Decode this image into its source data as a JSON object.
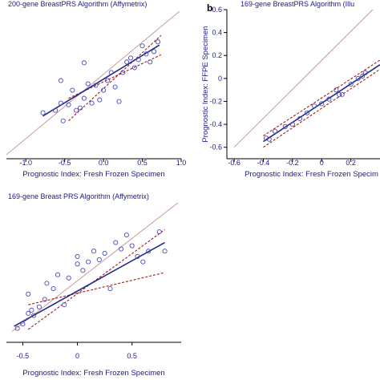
{
  "chart_data": [
    {
      "type": "scatter",
      "title": "200-gene BreastPRS Algorithm (Affymetrix)",
      "panel_label": "",
      "xlabel": "Prognostic Index: Fresh Frozen Specimen",
      "ylabel": "",
      "xlim": [
        -1.25,
        1.0
      ],
      "ylim": [
        -0.95,
        0.9
      ],
      "xticks": [
        "-1.0",
        "-0.5",
        "0.0",
        "0.5",
        "1.0"
      ],
      "grid": false,
      "points": [
        [
          -0.78,
          -0.38
        ],
        [
          -0.62,
          -0.35
        ],
        [
          -0.55,
          -0.26
        ],
        [
          -0.52,
          -0.48
        ],
        [
          -0.45,
          -0.28
        ],
        [
          -0.4,
          -0.1
        ],
        [
          -0.35,
          -0.35
        ],
        [
          -0.3,
          -0.32
        ],
        [
          -0.25,
          -0.2
        ],
        [
          -0.2,
          -0.02
        ],
        [
          -0.15,
          -0.26
        ],
        [
          -0.1,
          -0.04
        ],
        [
          -0.05,
          -0.22
        ],
        [
          0.0,
          -0.1
        ],
        [
          0.05,
          0.02
        ],
        [
          0.1,
          0.12
        ],
        [
          0.15,
          -0.06
        ],
        [
          0.2,
          -0.24
        ],
        [
          0.25,
          0.12
        ],
        [
          0.3,
          0.25
        ],
        [
          0.35,
          0.3
        ],
        [
          0.4,
          0.18
        ],
        [
          0.45,
          0.28
        ],
        [
          0.5,
          0.45
        ],
        [
          0.55,
          0.35
        ],
        [
          0.6,
          0.25
        ],
        [
          0.65,
          0.38
        ],
        [
          0.7,
          0.5
        ],
        [
          -0.55,
          0.02
        ],
        [
          -0.25,
          0.24
        ]
      ],
      "fit_line": [
        [
          -0.78,
          -0.42
        ],
        [
          0.72,
          0.46
        ]
      ],
      "ci_upper": [
        [
          -0.45,
          -0.48
        ],
        [
          0.74,
          0.58
        ]
      ],
      "ci_lower": [
        [
          -0.45,
          -0.2
        ],
        [
          0.74,
          0.34
        ]
      ],
      "identity_line": [
        [
          -1.25,
          -0.9
        ],
        [
          0.98,
          0.88
        ]
      ]
    },
    {
      "type": "scatter",
      "title": "169-gene BreastPRS Algorithm (Illu",
      "panel_label": "b",
      "xlabel": "Prognostic Index: Fresh Frozen Specim",
      "ylabel": "Prognostic Index: FFPE Specimen",
      "xlim": [
        -0.65,
        0.4
      ],
      "ylim": [
        -0.7,
        0.6
      ],
      "xticks": [
        "-0.6",
        "-0.4",
        "-0.2",
        "0",
        "0.2"
      ],
      "yticks": [
        "0.6",
        "0.4",
        "0.2",
        "0",
        "-0.2",
        "-0.4",
        "-0.6"
      ],
      "grid": false,
      "points": [
        [
          -0.38,
          -0.52
        ],
        [
          -0.36,
          -0.53
        ],
        [
          -0.32,
          -0.46
        ],
        [
          -0.25,
          -0.42
        ],
        [
          -0.2,
          -0.4
        ],
        [
          -0.15,
          -0.35
        ],
        [
          -0.1,
          -0.3
        ],
        [
          -0.05,
          -0.24
        ],
        [
          0.0,
          -0.22
        ],
        [
          0.05,
          -0.18
        ],
        [
          0.1,
          -0.1
        ],
        [
          0.12,
          -0.14
        ],
        [
          0.14,
          -0.14
        ],
        [
          0.2,
          -0.05
        ],
        [
          0.25,
          0.0
        ],
        [
          0.28,
          0.02
        ],
        [
          0.3,
          0.05
        ]
      ],
      "fit_line": [
        [
          -0.4,
          -0.55
        ],
        [
          0.4,
          0.12
        ]
      ],
      "ci_upper": [
        [
          -0.4,
          -0.5
        ],
        [
          0.4,
          0.16
        ]
      ],
      "ci_lower": [
        [
          -0.4,
          -0.6
        ],
        [
          0.4,
          0.08
        ]
      ],
      "identity_line": [
        [
          -0.6,
          -0.6
        ],
        [
          0.35,
          0.6
        ]
      ]
    },
    {
      "type": "scatter",
      "title": "169-gene Breast PRS Algorithm (Affymetrix)",
      "panel_label": "",
      "xlabel": "Prognostic Index: Fresh Frozen Specimen",
      "ylabel": "",
      "xlim": [
        -0.65,
        0.95
      ],
      "ylim": [
        -0.55,
        0.75
      ],
      "xticks": [
        "-0.5",
        "0",
        "0.5"
      ],
      "grid": false,
      "points": [
        [
          -0.55,
          -0.42
        ],
        [
          -0.5,
          -0.38
        ],
        [
          -0.45,
          -0.1
        ],
        [
          -0.42,
          -0.25
        ],
        [
          -0.4,
          -0.3
        ],
        [
          -0.35,
          -0.22
        ],
        [
          -0.3,
          -0.15
        ],
        [
          -0.28,
          0.0
        ],
        [
          -0.22,
          -0.05
        ],
        [
          -0.18,
          0.08
        ],
        [
          -0.12,
          -0.2
        ],
        [
          -0.08,
          0.05
        ],
        [
          0.0,
          0.25
        ],
        [
          0.05,
          0.12
        ],
        [
          0.1,
          0.2
        ],
        [
          0.15,
          0.3
        ],
        [
          0.2,
          0.22
        ],
        [
          0.25,
          0.28
        ],
        [
          0.3,
          -0.05
        ],
        [
          0.35,
          0.38
        ],
        [
          0.4,
          0.32
        ],
        [
          0.45,
          0.45
        ],
        [
          0.5,
          0.35
        ],
        [
          0.55,
          0.25
        ],
        [
          0.6,
          0.2
        ],
        [
          0.65,
          0.3
        ],
        [
          0.75,
          0.48
        ],
        [
          0.8,
          0.3
        ],
        [
          -0.45,
          -0.28
        ],
        [
          0.0,
          0.18
        ]
      ],
      "fit_line": [
        [
          -0.58,
          -0.4
        ],
        [
          0.8,
          0.38
        ]
      ],
      "ci_upper": [
        [
          -0.45,
          -0.43
        ],
        [
          0.8,
          0.5
        ]
      ],
      "ci_lower": [
        [
          -0.45,
          -0.2
        ],
        [
          0.8,
          0.1
        ]
      ],
      "identity_line": [
        [
          -0.6,
          -0.45
        ],
        [
          0.92,
          0.75
        ]
      ]
    }
  ],
  "colors": {
    "points": "#4a4ab8",
    "fit": "#1f2a8a",
    "ci": "#a31a1a",
    "identity": "#c99a9a",
    "text": "#1a1a8c",
    "axis": "#000000"
  }
}
